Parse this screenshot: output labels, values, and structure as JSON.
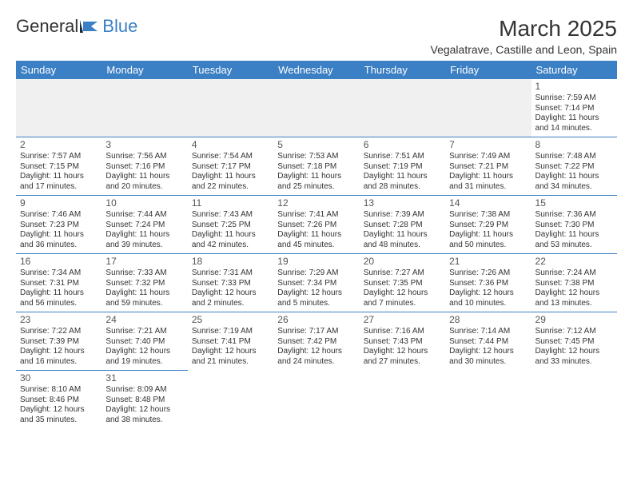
{
  "brand": {
    "part1": "General",
    "part2": "Blue"
  },
  "title": "March 2025",
  "location": "Vegalatrave, Castille and Leon, Spain",
  "colors": {
    "header_bg": "#3b7fc4",
    "header_fg": "#ffffff",
    "rule": "#3b7fc4"
  },
  "day_names": [
    "Sunday",
    "Monday",
    "Tuesday",
    "Wednesday",
    "Thursday",
    "Friday",
    "Saturday"
  ],
  "weeks": [
    [
      null,
      null,
      null,
      null,
      null,
      null,
      {
        "n": "1",
        "sr": "Sunrise: 7:59 AM",
        "ss": "Sunset: 7:14 PM",
        "dl": "Daylight: 11 hours and 14 minutes."
      }
    ],
    [
      {
        "n": "2",
        "sr": "Sunrise: 7:57 AM",
        "ss": "Sunset: 7:15 PM",
        "dl": "Daylight: 11 hours and 17 minutes."
      },
      {
        "n": "3",
        "sr": "Sunrise: 7:56 AM",
        "ss": "Sunset: 7:16 PM",
        "dl": "Daylight: 11 hours and 20 minutes."
      },
      {
        "n": "4",
        "sr": "Sunrise: 7:54 AM",
        "ss": "Sunset: 7:17 PM",
        "dl": "Daylight: 11 hours and 22 minutes."
      },
      {
        "n": "5",
        "sr": "Sunrise: 7:53 AM",
        "ss": "Sunset: 7:18 PM",
        "dl": "Daylight: 11 hours and 25 minutes."
      },
      {
        "n": "6",
        "sr": "Sunrise: 7:51 AM",
        "ss": "Sunset: 7:19 PM",
        "dl": "Daylight: 11 hours and 28 minutes."
      },
      {
        "n": "7",
        "sr": "Sunrise: 7:49 AM",
        "ss": "Sunset: 7:21 PM",
        "dl": "Daylight: 11 hours and 31 minutes."
      },
      {
        "n": "8",
        "sr": "Sunrise: 7:48 AM",
        "ss": "Sunset: 7:22 PM",
        "dl": "Daylight: 11 hours and 34 minutes."
      }
    ],
    [
      {
        "n": "9",
        "sr": "Sunrise: 7:46 AM",
        "ss": "Sunset: 7:23 PM",
        "dl": "Daylight: 11 hours and 36 minutes."
      },
      {
        "n": "10",
        "sr": "Sunrise: 7:44 AM",
        "ss": "Sunset: 7:24 PM",
        "dl": "Daylight: 11 hours and 39 minutes."
      },
      {
        "n": "11",
        "sr": "Sunrise: 7:43 AM",
        "ss": "Sunset: 7:25 PM",
        "dl": "Daylight: 11 hours and 42 minutes."
      },
      {
        "n": "12",
        "sr": "Sunrise: 7:41 AM",
        "ss": "Sunset: 7:26 PM",
        "dl": "Daylight: 11 hours and 45 minutes."
      },
      {
        "n": "13",
        "sr": "Sunrise: 7:39 AM",
        "ss": "Sunset: 7:28 PM",
        "dl": "Daylight: 11 hours and 48 minutes."
      },
      {
        "n": "14",
        "sr": "Sunrise: 7:38 AM",
        "ss": "Sunset: 7:29 PM",
        "dl": "Daylight: 11 hours and 50 minutes."
      },
      {
        "n": "15",
        "sr": "Sunrise: 7:36 AM",
        "ss": "Sunset: 7:30 PM",
        "dl": "Daylight: 11 hours and 53 minutes."
      }
    ],
    [
      {
        "n": "16",
        "sr": "Sunrise: 7:34 AM",
        "ss": "Sunset: 7:31 PM",
        "dl": "Daylight: 11 hours and 56 minutes."
      },
      {
        "n": "17",
        "sr": "Sunrise: 7:33 AM",
        "ss": "Sunset: 7:32 PM",
        "dl": "Daylight: 11 hours and 59 minutes."
      },
      {
        "n": "18",
        "sr": "Sunrise: 7:31 AM",
        "ss": "Sunset: 7:33 PM",
        "dl": "Daylight: 12 hours and 2 minutes."
      },
      {
        "n": "19",
        "sr": "Sunrise: 7:29 AM",
        "ss": "Sunset: 7:34 PM",
        "dl": "Daylight: 12 hours and 5 minutes."
      },
      {
        "n": "20",
        "sr": "Sunrise: 7:27 AM",
        "ss": "Sunset: 7:35 PM",
        "dl": "Daylight: 12 hours and 7 minutes."
      },
      {
        "n": "21",
        "sr": "Sunrise: 7:26 AM",
        "ss": "Sunset: 7:36 PM",
        "dl": "Daylight: 12 hours and 10 minutes."
      },
      {
        "n": "22",
        "sr": "Sunrise: 7:24 AM",
        "ss": "Sunset: 7:38 PM",
        "dl": "Daylight: 12 hours and 13 minutes."
      }
    ],
    [
      {
        "n": "23",
        "sr": "Sunrise: 7:22 AM",
        "ss": "Sunset: 7:39 PM",
        "dl": "Daylight: 12 hours and 16 minutes."
      },
      {
        "n": "24",
        "sr": "Sunrise: 7:21 AM",
        "ss": "Sunset: 7:40 PM",
        "dl": "Daylight: 12 hours and 19 minutes."
      },
      {
        "n": "25",
        "sr": "Sunrise: 7:19 AM",
        "ss": "Sunset: 7:41 PM",
        "dl": "Daylight: 12 hours and 21 minutes."
      },
      {
        "n": "26",
        "sr": "Sunrise: 7:17 AM",
        "ss": "Sunset: 7:42 PM",
        "dl": "Daylight: 12 hours and 24 minutes."
      },
      {
        "n": "27",
        "sr": "Sunrise: 7:16 AM",
        "ss": "Sunset: 7:43 PM",
        "dl": "Daylight: 12 hours and 27 minutes."
      },
      {
        "n": "28",
        "sr": "Sunrise: 7:14 AM",
        "ss": "Sunset: 7:44 PM",
        "dl": "Daylight: 12 hours and 30 minutes."
      },
      {
        "n": "29",
        "sr": "Sunrise: 7:12 AM",
        "ss": "Sunset: 7:45 PM",
        "dl": "Daylight: 12 hours and 33 minutes."
      }
    ],
    [
      {
        "n": "30",
        "sr": "Sunrise: 8:10 AM",
        "ss": "Sunset: 8:46 PM",
        "dl": "Daylight: 12 hours and 35 minutes."
      },
      {
        "n": "31",
        "sr": "Sunrise: 8:09 AM",
        "ss": "Sunset: 8:48 PM",
        "dl": "Daylight: 12 hours and 38 minutes."
      },
      null,
      null,
      null,
      null,
      null
    ]
  ]
}
